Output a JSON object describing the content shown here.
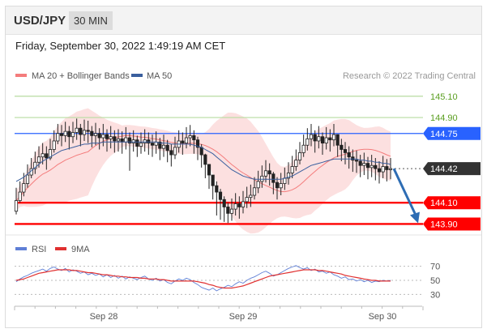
{
  "header": {
    "pair": "USD/JPY",
    "timeframe": "30 MIN"
  },
  "datetime": "Friday, September 30, 2022 1:49:19 AM CET",
  "legend": {
    "bollinger": "MA 20 + Bollinger Bands",
    "ma50": "MA 50",
    "credit": "Research © 2022 Trading Central"
  },
  "rsi_legend": {
    "rsi": "RSI",
    "ma9": "9MA"
  },
  "colors": {
    "support": "#ff0000",
    "resistance_line": "#2962ff",
    "target": "#66a61e",
    "current": "#333333",
    "arrow": "#2e6db4",
    "bollinger": "#f47c7c",
    "ma50": "#3a5f9e",
    "rsi": "#5f7fd6",
    "rsi_ma": "#e03030"
  },
  "chart_data": [
    {
      "type": "candlestick",
      "x_ticks": [
        "Sep 28",
        "Sep 29",
        "Sep 30"
      ],
      "ylim": [
        143.82,
        145.22
      ],
      "levels": [
        {
          "label": "145.10",
          "value": 145.1,
          "kind": "target"
        },
        {
          "label": "144.90",
          "value": 144.9,
          "kind": "target"
        },
        {
          "label": "144.75",
          "value": 144.75,
          "kind": "resistance"
        },
        {
          "label": "144.42",
          "value": 144.42,
          "kind": "current"
        },
        {
          "label": "144.10",
          "value": 144.1,
          "kind": "support"
        },
        {
          "label": "143.90",
          "value": 143.9,
          "kind": "support"
        }
      ],
      "close": [
        144.12,
        144.2,
        144.28,
        144.36,
        144.42,
        144.48,
        144.53,
        144.56,
        144.52,
        144.6,
        144.68,
        144.75,
        144.73,
        144.77,
        144.72,
        144.76,
        144.8,
        144.74,
        144.78,
        144.77,
        144.73,
        144.75,
        144.71,
        144.74,
        144.7,
        144.72,
        144.68,
        144.7,
        144.67,
        144.71,
        144.66,
        144.69,
        144.63,
        144.66,
        144.69,
        144.66,
        144.64,
        144.67,
        144.61,
        144.64,
        144.59,
        144.55,
        144.62,
        144.68,
        144.66,
        144.71,
        144.73,
        144.69,
        144.62,
        144.55,
        144.46,
        144.36,
        144.26,
        144.2,
        144.13,
        144.06,
        144.0,
        144.04,
        144.09,
        144.06,
        144.11,
        144.15,
        144.17,
        144.24,
        144.3,
        144.35,
        144.4,
        144.37,
        144.29,
        144.24,
        144.28,
        144.33,
        144.38,
        144.44,
        144.5,
        144.57,
        144.64,
        144.7,
        144.74,
        144.68,
        144.72,
        144.66,
        144.71,
        144.69,
        144.74,
        144.64,
        144.6,
        144.57,
        144.53,
        144.5,
        144.49,
        144.45,
        144.47,
        144.43,
        144.45,
        144.42,
        144.39,
        144.44,
        144.41,
        144.42
      ],
      "low": [
        143.99,
        144.1,
        144.16,
        144.24,
        144.33,
        144.37,
        144.43,
        144.46,
        144.41,
        144.5,
        144.57,
        144.65,
        144.63,
        144.67,
        144.6,
        144.66,
        144.69,
        144.63,
        144.68,
        144.66,
        144.62,
        144.64,
        144.6,
        144.63,
        144.58,
        144.61,
        144.57,
        144.58,
        144.56,
        144.6,
        144.4,
        144.58,
        144.53,
        144.56,
        144.58,
        144.55,
        144.53,
        144.56,
        144.5,
        144.53,
        144.48,
        144.44,
        144.51,
        144.57,
        144.55,
        144.61,
        144.63,
        144.56,
        144.5,
        144.43,
        144.33,
        144.23,
        144.13,
        143.98,
        143.94,
        143.92,
        143.91,
        143.93,
        143.98,
        143.95,
        144.0,
        144.05,
        144.06,
        144.13,
        144.19,
        144.24,
        144.29,
        144.26,
        144.18,
        144.13,
        144.17,
        144.22,
        144.27,
        144.33,
        144.4,
        144.46,
        144.53,
        144.59,
        144.63,
        144.57,
        144.61,
        144.55,
        144.6,
        144.58,
        144.63,
        144.53,
        144.49,
        144.46,
        144.42,
        144.39,
        144.38,
        144.34,
        144.36,
        144.32,
        144.34,
        144.31,
        144.28,
        144.33,
        144.3,
        144.32
      ],
      "high": [
        144.24,
        144.3,
        144.38,
        144.46,
        144.52,
        144.58,
        144.63,
        144.66,
        144.63,
        144.7,
        144.78,
        144.84,
        144.83,
        144.86,
        144.82,
        144.86,
        144.89,
        144.84,
        144.88,
        144.87,
        144.82,
        144.85,
        144.8,
        144.84,
        144.79,
        144.82,
        144.78,
        144.79,
        144.77,
        144.81,
        144.76,
        144.78,
        144.73,
        144.76,
        144.79,
        144.76,
        144.74,
        144.77,
        144.71,
        144.74,
        144.69,
        144.65,
        144.72,
        144.78,
        144.76,
        144.81,
        144.83,
        144.78,
        144.72,
        144.65,
        144.56,
        144.46,
        144.36,
        144.3,
        144.23,
        144.16,
        144.1,
        144.14,
        144.19,
        144.16,
        144.21,
        144.25,
        144.27,
        144.34,
        144.4,
        144.45,
        144.5,
        144.47,
        144.39,
        144.34,
        144.38,
        144.43,
        144.48,
        144.54,
        144.6,
        144.67,
        144.74,
        144.8,
        144.84,
        144.78,
        144.82,
        144.76,
        144.81,
        144.79,
        144.84,
        144.74,
        144.7,
        144.67,
        144.63,
        144.6,
        144.59,
        144.55,
        144.57,
        144.53,
        144.55,
        144.52,
        144.49,
        144.54,
        144.51,
        144.52
      ],
      "ma50": [
        144.3,
        144.32,
        144.34,
        144.37,
        144.4,
        144.43,
        144.46,
        144.49,
        144.51,
        144.53,
        144.55,
        144.57,
        144.59,
        144.6,
        144.61,
        144.62,
        144.63,
        144.64,
        144.65,
        144.65,
        144.66,
        144.66,
        144.66,
        144.67,
        144.67,
        144.67,
        144.67,
        144.67,
        144.67,
        144.67,
        144.67,
        144.67,
        144.67,
        144.67,
        144.67,
        144.67,
        144.67,
        144.67,
        144.66,
        144.66,
        144.66,
        144.65,
        144.65,
        144.65,
        144.65,
        144.65,
        144.65,
        144.64,
        144.63,
        144.62,
        144.6,
        144.58,
        144.56,
        144.53,
        144.5,
        144.47,
        144.44,
        144.41,
        144.39,
        144.37,
        144.35,
        144.34,
        144.33,
        144.32,
        144.32,
        144.32,
        144.32,
        144.32,
        144.32,
        144.32,
        144.32,
        144.33,
        144.34,
        144.35,
        144.37,
        144.39,
        144.41,
        144.43,
        144.45,
        144.46,
        144.47,
        144.48,
        144.49,
        144.5,
        144.51,
        144.51,
        144.51,
        144.51,
        144.51,
        144.51,
        144.51,
        144.5,
        144.5,
        144.49,
        144.49,
        144.48,
        144.48,
        144.47,
        144.47,
        144.46
      ]
    },
    {
      "type": "line",
      "ylim": [
        20,
        80
      ],
      "y_ticks": [
        70,
        50,
        30
      ],
      "series": [
        {
          "name": "RSI",
          "values": [
            48,
            52,
            55,
            57,
            60,
            62,
            64,
            66,
            63,
            67,
            69,
            66,
            64,
            67,
            62,
            65,
            63,
            60,
            62,
            58,
            60,
            57,
            59,
            55,
            58,
            54,
            57,
            53,
            56,
            52,
            55,
            53,
            51,
            54,
            56,
            52,
            50,
            53,
            49,
            51,
            47,
            45,
            49,
            52,
            50,
            53,
            51,
            47,
            44,
            40,
            38,
            36,
            39,
            35,
            38,
            40,
            43,
            41,
            45,
            48,
            46,
            50,
            53,
            55,
            58,
            61,
            63,
            60,
            56,
            58,
            61,
            64,
            67,
            69,
            71,
            68,
            66,
            68,
            64,
            66,
            62,
            63,
            60,
            62,
            58,
            56,
            53,
            55,
            51,
            52,
            49,
            51,
            48,
            50,
            47,
            49,
            48,
            50,
            49,
            50
          ]
        },
        {
          "name": "9MA",
          "values": [
            50,
            51,
            52,
            54,
            56,
            58,
            60,
            61,
            62,
            63,
            64,
            65,
            65,
            65,
            65,
            64,
            64,
            63,
            62,
            61,
            61,
            60,
            59,
            58,
            58,
            57,
            56,
            56,
            55,
            55,
            54,
            54,
            54,
            53,
            53,
            52,
            52,
            52,
            51,
            51,
            50,
            49,
            49,
            49,
            49,
            49,
            49,
            49,
            48,
            47,
            46,
            44,
            43,
            41,
            40,
            39,
            39,
            39,
            40,
            41,
            42,
            44,
            46,
            48,
            50,
            52,
            54,
            56,
            57,
            58,
            59,
            60,
            61,
            62,
            63,
            64,
            65,
            65,
            65,
            65,
            64,
            64,
            63,
            62,
            61,
            60,
            59,
            57,
            56,
            55,
            54,
            53,
            52,
            51,
            50,
            50,
            49,
            49,
            49,
            49
          ]
        }
      ]
    }
  ]
}
